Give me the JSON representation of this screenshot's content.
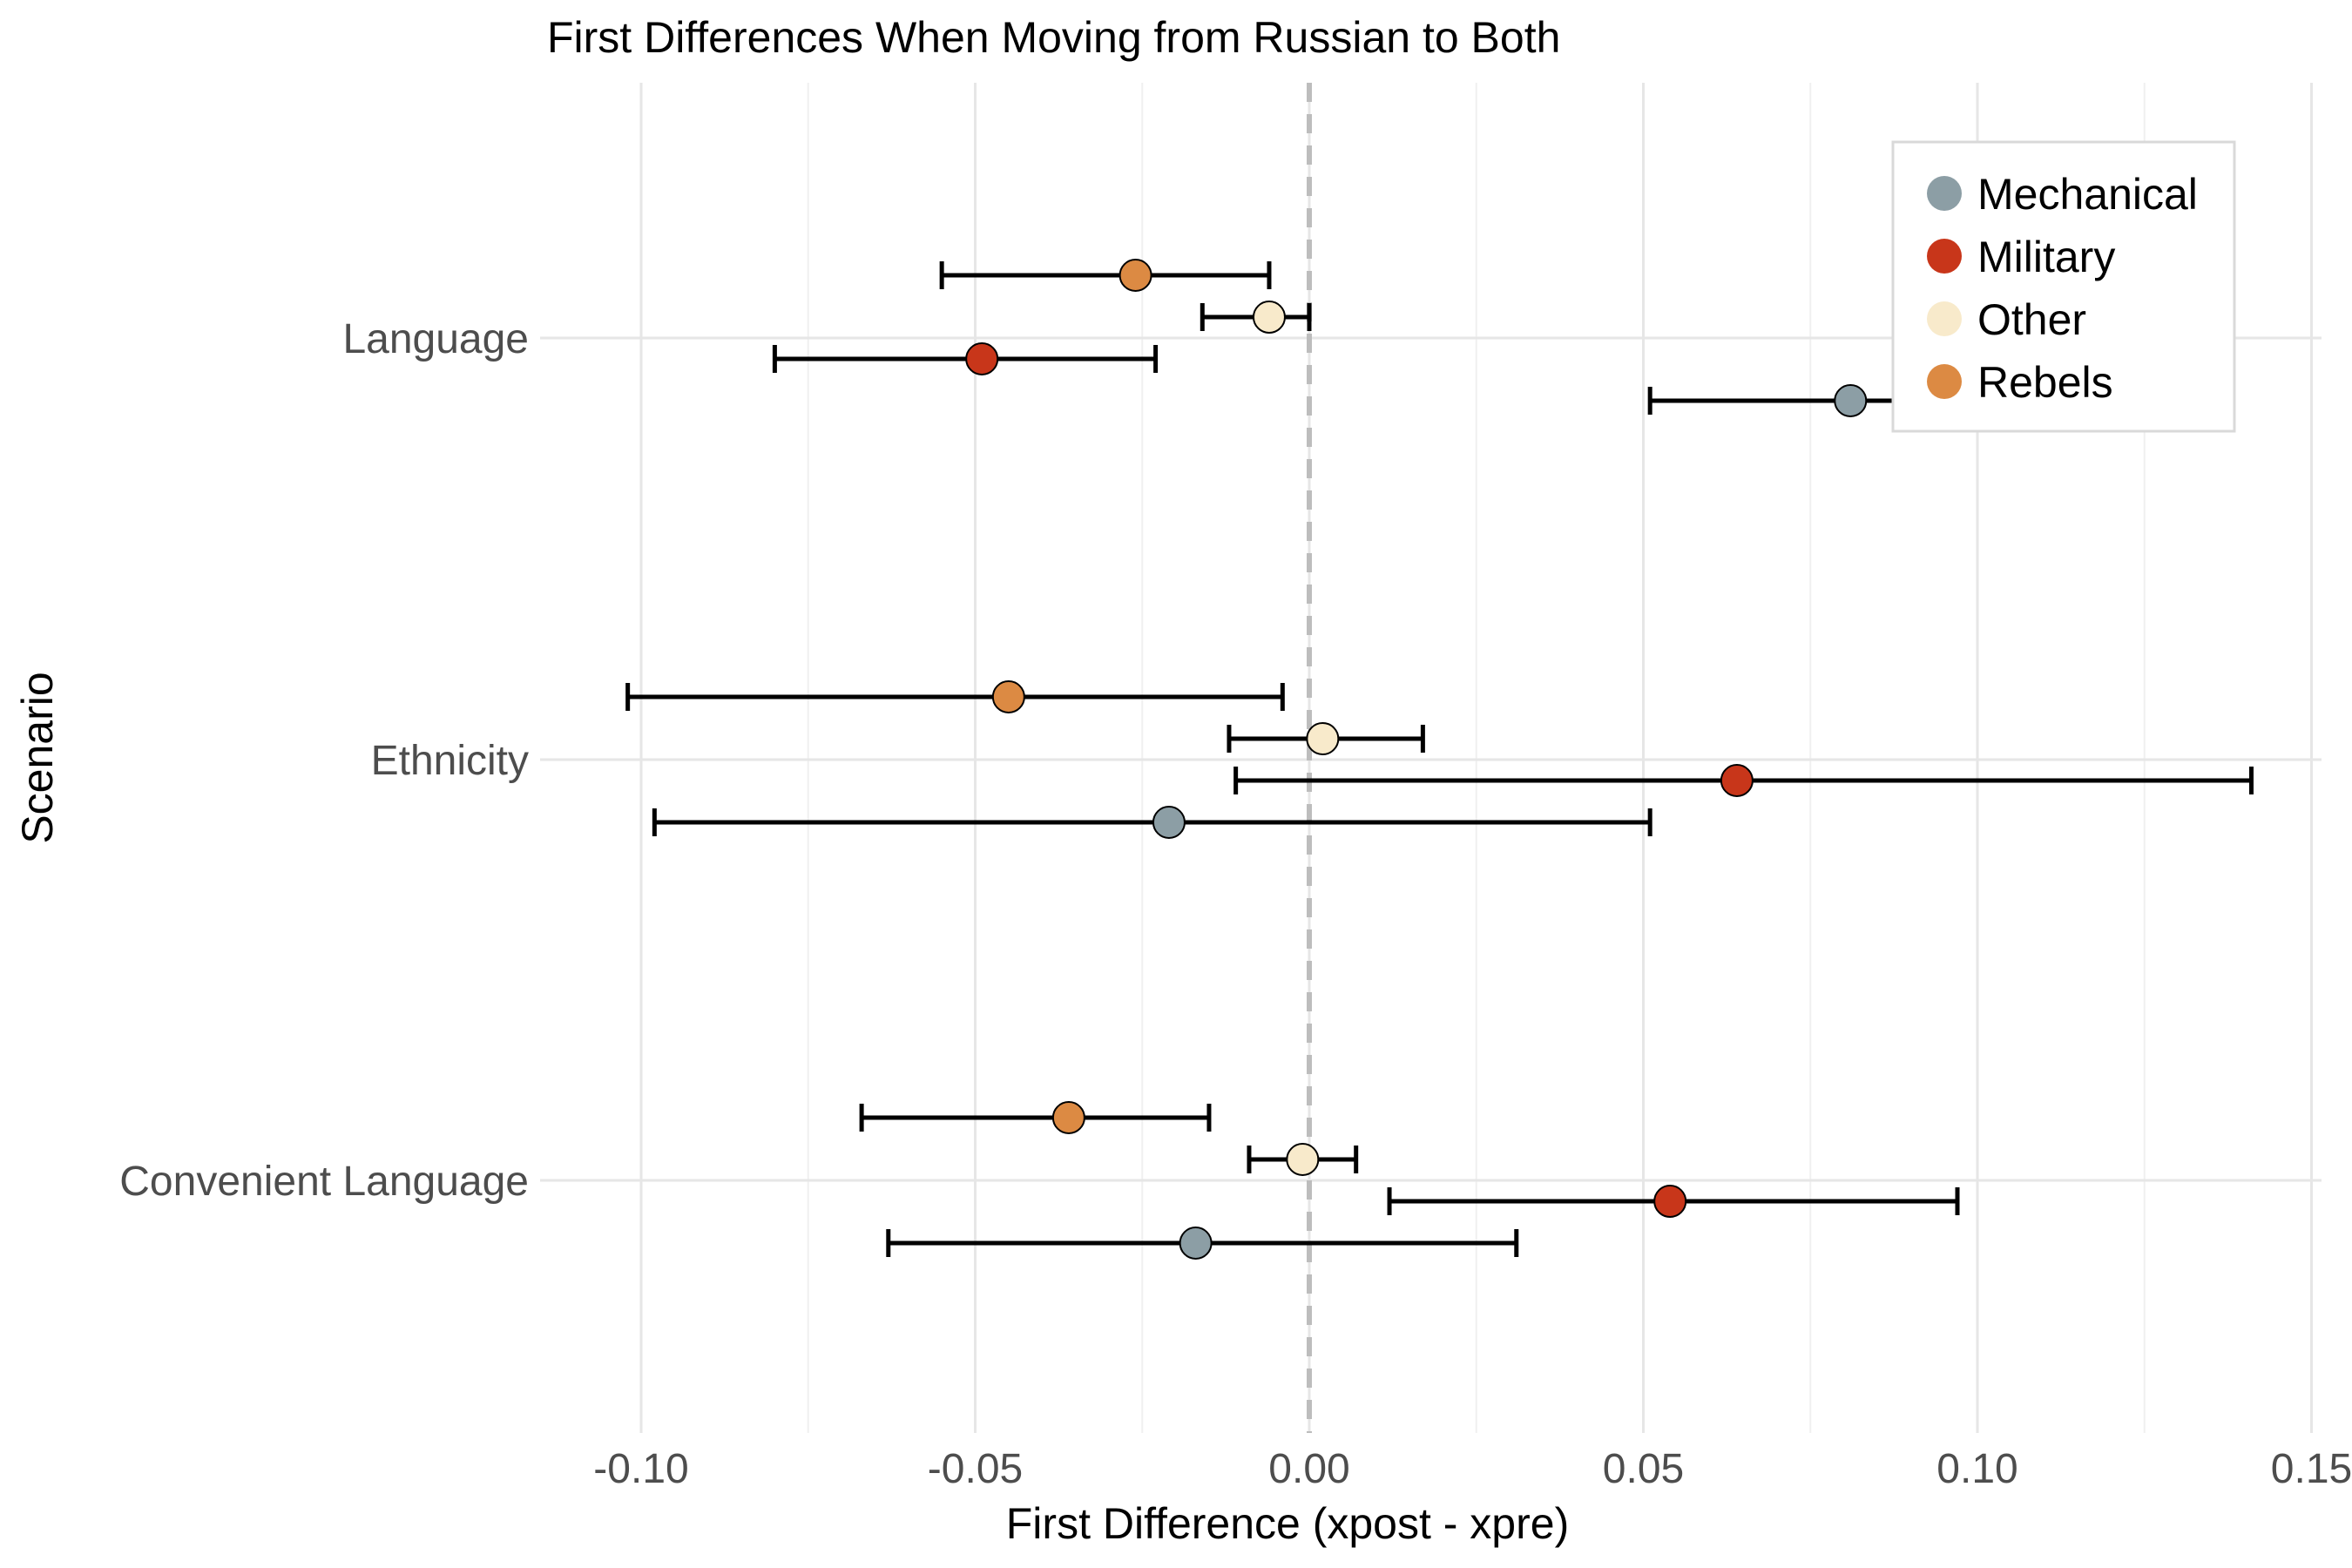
{
  "chart_data": {
    "type": "scatter",
    "title": "First Differences When Moving from Russian to Both",
    "xlabel": "First Difference (xpost - xpre)",
    "ylabel": "Scenario",
    "xlim": [
      -0.112,
      0.15
    ],
    "x_ticks": [
      -0.1,
      -0.05,
      0.0,
      0.05,
      0.1,
      0.15
    ],
    "x_tick_labels": [
      "-0.10",
      "-0.05",
      "0.00",
      "0.05",
      "0.10",
      "0.15"
    ],
    "categories": [
      "Language",
      "Ethnicity",
      "Convenient Language"
    ],
    "reference_line": {
      "x": 0,
      "style": "dashed"
    },
    "grid": true,
    "legend": {
      "position": "top-right",
      "title": ""
    },
    "series": [
      {
        "name": "Mechanical",
        "color": "#8c9ea5",
        "points": [
          {
            "category": "Language",
            "estimate": 0.081,
            "lower": 0.051,
            "upper": 0.092
          },
          {
            "category": "Ethnicity",
            "estimate": -0.021,
            "lower": -0.098,
            "upper": 0.051
          },
          {
            "category": "Convenient Language",
            "estimate": -0.017,
            "lower": -0.063,
            "upper": 0.031
          }
        ]
      },
      {
        "name": "Military",
        "color": "#c8361a",
        "points": [
          {
            "category": "Language",
            "estimate": -0.049,
            "lower": -0.08,
            "upper": -0.023
          },
          {
            "category": "Ethnicity",
            "estimate": 0.064,
            "lower": -0.011,
            "upper": 0.141
          },
          {
            "category": "Convenient Language",
            "estimate": 0.054,
            "lower": 0.012,
            "upper": 0.097
          }
        ]
      },
      {
        "name": "Other",
        "color": "#f8eacb",
        "points": [
          {
            "category": "Language",
            "estimate": -0.006,
            "lower": -0.016,
            "upper": 0.0
          },
          {
            "category": "Ethnicity",
            "estimate": 0.002,
            "lower": -0.012,
            "upper": 0.017
          },
          {
            "category": "Convenient Language",
            "estimate": -0.001,
            "lower": -0.009,
            "upper": 0.007
          }
        ]
      },
      {
        "name": "Rebels",
        "color": "#dc8a43",
        "points": [
          {
            "category": "Language",
            "estimate": -0.026,
            "lower": -0.055,
            "upper": -0.006
          },
          {
            "category": "Ethnicity",
            "estimate": -0.045,
            "lower": -0.102,
            "upper": -0.004
          },
          {
            "category": "Convenient Language",
            "estimate": -0.036,
            "lower": -0.067,
            "upper": -0.015
          }
        ]
      }
    ]
  }
}
